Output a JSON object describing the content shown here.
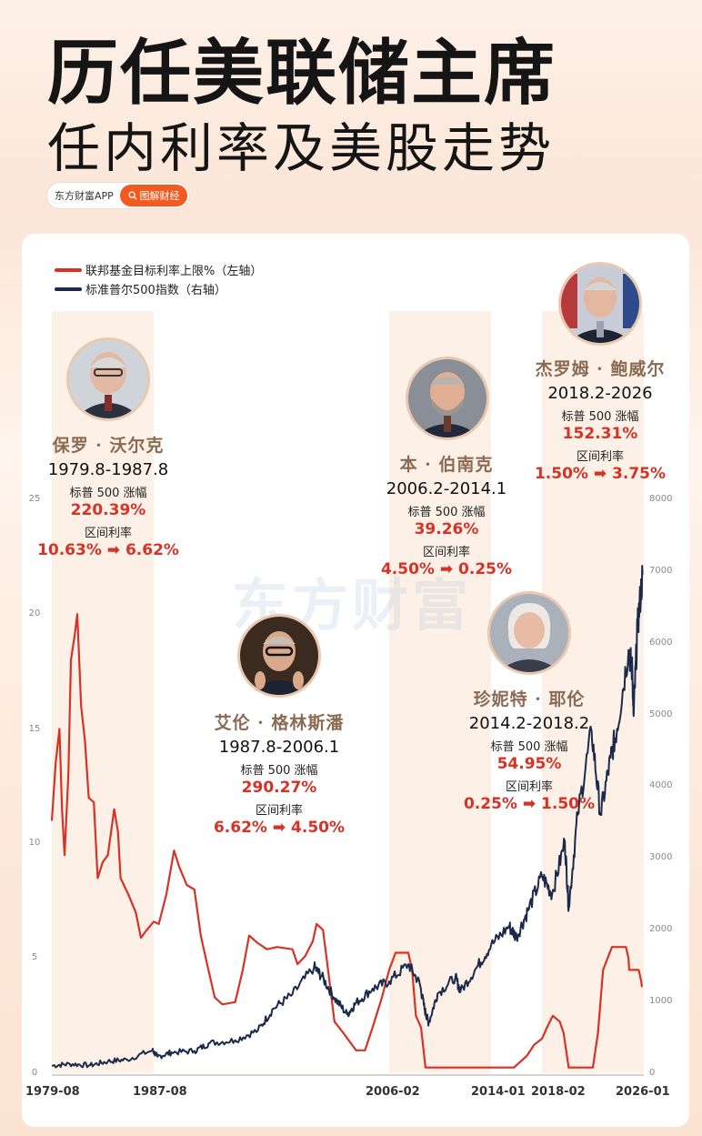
{
  "header": {
    "title_line1": "历任美联储主席",
    "title_line2": "任内利率及美股走势",
    "brand_app": "东方财富APP",
    "brand_tag": "图解财经",
    "watermark": "东方财富"
  },
  "colors": {
    "rate_line": "#d63226",
    "spx_line": "#1b2a4b",
    "term_band": "#fdf1e7",
    "accent_red": "#d63226",
    "name_brown": "#8a6a52"
  },
  "chairs": [
    {
      "name": "保罗 · 沃尔克",
      "term": "1979.8-1987.8",
      "spx_label": "标普 500 涨幅",
      "spx_gain": "220.39%",
      "rate_label": "区间利率",
      "rate_range": "10.63% ➡ 6.62%",
      "icon": "portrait-volcker"
    },
    {
      "name": "艾伦 · 格林斯潘",
      "term": "1987.8-2006.1",
      "spx_label": "标普 500 涨幅",
      "spx_gain": "290.27%",
      "rate_label": "区间利率",
      "rate_range": "6.62% ➡ 4.50%",
      "icon": "portrait-greenspan"
    },
    {
      "name": "本 · 伯南克",
      "term": "2006.2-2014.1",
      "spx_label": "标普 500 涨幅",
      "spx_gain": "39.26%",
      "rate_label": "区间利率",
      "rate_range": "4.50% ➡ 0.25%",
      "icon": "portrait-bernanke"
    },
    {
      "name": "珍妮特 · 耶伦",
      "term": "2014.2-2018.2",
      "spx_label": "标普 500 涨幅",
      "spx_gain": "54.95%",
      "rate_label": "区间利率",
      "rate_range": "0.25% ➡ 1.50%",
      "icon": "portrait-yellen"
    },
    {
      "name": "杰罗姆 · 鲍威尔",
      "term": "2018.2-2026",
      "spx_label": "标普 500 涨幅",
      "spx_gain": "152.31%",
      "rate_label": "区间利率",
      "rate_range": "1.50% ➡ 3.75%",
      "icon": "portrait-powell"
    }
  ],
  "chart_data": {
    "type": "line",
    "title": "",
    "legend_position": "top-left",
    "grid": false,
    "x_tick_labels": [
      "1979-08",
      "1987-08",
      "2006-02",
      "2014-01",
      "2018-02",
      "2026-01"
    ],
    "y_left_ticks": [
      "0",
      "5",
      "10",
      "15",
      "20",
      "25"
    ],
    "y_right_ticks": [
      "0",
      "1000",
      "2000",
      "3000",
      "4000",
      "5000",
      "6000",
      "7000",
      "8000"
    ],
    "ylim_left": [
      0,
      25
    ],
    "ylim_right": [
      0,
      8000
    ],
    "xlim": [
      1979.6,
      2026.1
    ],
    "term_bands": [
      [
        1979.6,
        1987.6
      ],
      [
        2006.1,
        2014.1
      ],
      [
        2018.1,
        2026.1
      ]
    ],
    "series": [
      {
        "name": "联邦基金目标利率上限%（左轴）",
        "axis": "left",
        "points": [
          [
            1979.6,
            11.0
          ],
          [
            1979.9,
            13.5
          ],
          [
            1980.2,
            15.0
          ],
          [
            1980.4,
            11.5
          ],
          [
            1980.6,
            9.5
          ],
          [
            1980.9,
            13.0
          ],
          [
            1981.1,
            18.0
          ],
          [
            1981.4,
            19.1
          ],
          [
            1981.6,
            20.0
          ],
          [
            1981.9,
            16.0
          ],
          [
            1982.2,
            14.5
          ],
          [
            1982.5,
            12.0
          ],
          [
            1982.9,
            11.8
          ],
          [
            1983.2,
            8.5
          ],
          [
            1983.6,
            9.2
          ],
          [
            1984.0,
            9.5
          ],
          [
            1984.5,
            11.5
          ],
          [
            1984.8,
            10.5
          ],
          [
            1985.0,
            8.5
          ],
          [
            1985.6,
            7.8
          ],
          [
            1986.2,
            7.0
          ],
          [
            1986.6,
            5.9
          ],
          [
            1987.0,
            6.2
          ],
          [
            1987.6,
            6.6
          ],
          [
            1988.0,
            6.5
          ],
          [
            1988.6,
            7.8
          ],
          [
            1989.2,
            9.7
          ],
          [
            1989.6,
            9.0
          ],
          [
            1990.2,
            8.2
          ],
          [
            1990.8,
            8.0
          ],
          [
            1991.3,
            6.0
          ],
          [
            1991.9,
            4.5
          ],
          [
            1992.4,
            3.3
          ],
          [
            1993.0,
            3.0
          ],
          [
            1994.0,
            3.1
          ],
          [
            1994.6,
            4.5
          ],
          [
            1995.1,
            6.0
          ],
          [
            1995.7,
            5.7
          ],
          [
            1996.5,
            5.4
          ],
          [
            1997.3,
            5.5
          ],
          [
            1998.5,
            5.4
          ],
          [
            1998.9,
            4.75
          ],
          [
            1999.5,
            5.1
          ],
          [
            2000.1,
            5.75
          ],
          [
            2000.4,
            6.5
          ],
          [
            2000.9,
            6.25
          ],
          [
            2001.3,
            4.5
          ],
          [
            2001.8,
            2.25
          ],
          [
            2002.5,
            1.75
          ],
          [
            2003.5,
            1.0
          ],
          [
            2004.2,
            1.0
          ],
          [
            2004.8,
            2.0
          ],
          [
            2005.5,
            3.25
          ],
          [
            2006.1,
            4.5
          ],
          [
            2006.6,
            5.25
          ],
          [
            2007.6,
            5.25
          ],
          [
            2007.9,
            4.5
          ],
          [
            2008.2,
            2.5
          ],
          [
            2008.6,
            2.0
          ],
          [
            2008.95,
            0.25
          ],
          [
            2015.9,
            0.25
          ],
          [
            2016.9,
            0.75
          ],
          [
            2017.5,
            1.25
          ],
          [
            2018.1,
            1.5
          ],
          [
            2018.5,
            2.0
          ],
          [
            2018.95,
            2.5
          ],
          [
            2019.5,
            2.25
          ],
          [
            2019.8,
            1.75
          ],
          [
            2020.2,
            0.25
          ],
          [
            2022.1,
            0.25
          ],
          [
            2022.5,
            1.75
          ],
          [
            2022.9,
            4.5
          ],
          [
            2023.6,
            5.5
          ],
          [
            2024.7,
            5.5
          ],
          [
            2024.9,
            5.0
          ],
          [
            2024.95,
            4.5
          ],
          [
            2025.7,
            4.5
          ],
          [
            2025.9,
            4.0
          ],
          [
            2025.95,
            3.75
          ]
        ]
      },
      {
        "name": "标准普尔500指数（右轴）",
        "axis": "right",
        "points": [
          [
            1979.6,
            105
          ],
          [
            1981.0,
            130
          ],
          [
            1982.6,
            110
          ],
          [
            1984.0,
            165
          ],
          [
            1985.5,
            190
          ],
          [
            1987.5,
            320
          ],
          [
            1987.9,
            230
          ],
          [
            1989.0,
            290
          ],
          [
            1990.8,
            310
          ],
          [
            1992.0,
            420
          ],
          [
            1994.0,
            460
          ],
          [
            1995.8,
            600
          ],
          [
            1997.0,
            900
          ],
          [
            1998.5,
            1100
          ],
          [
            2000.2,
            1480
          ],
          [
            2000.8,
            1350
          ],
          [
            2001.8,
            1050
          ],
          [
            2002.8,
            820
          ],
          [
            2003.5,
            980
          ],
          [
            2004.8,
            1180
          ],
          [
            2006.1,
            1280
          ],
          [
            2007.6,
            1520
          ],
          [
            2008.5,
            1250
          ],
          [
            2008.9,
            880
          ],
          [
            2009.2,
            700
          ],
          [
            2009.9,
            1110
          ],
          [
            2011.3,
            1340
          ],
          [
            2011.7,
            1140
          ],
          [
            2013.0,
            1480
          ],
          [
            2014.1,
            1780
          ],
          [
            2015.5,
            2050
          ],
          [
            2016.1,
            1900
          ],
          [
            2017.0,
            2270
          ],
          [
            2018.1,
            2750
          ],
          [
            2018.9,
            2500
          ],
          [
            2019.9,
            3230
          ],
          [
            2020.2,
            2300
          ],
          [
            2020.9,
            3600
          ],
          [
            2022.0,
            4770
          ],
          [
            2022.7,
            3600
          ],
          [
            2023.5,
            4400
          ],
          [
            2024.0,
            4800
          ],
          [
            2024.9,
            5900
          ],
          [
            2025.2,
            5600
          ],
          [
            2025.3,
            4980
          ],
          [
            2025.6,
            6200
          ],
          [
            2026.0,
            6950
          ]
        ]
      }
    ]
  }
}
